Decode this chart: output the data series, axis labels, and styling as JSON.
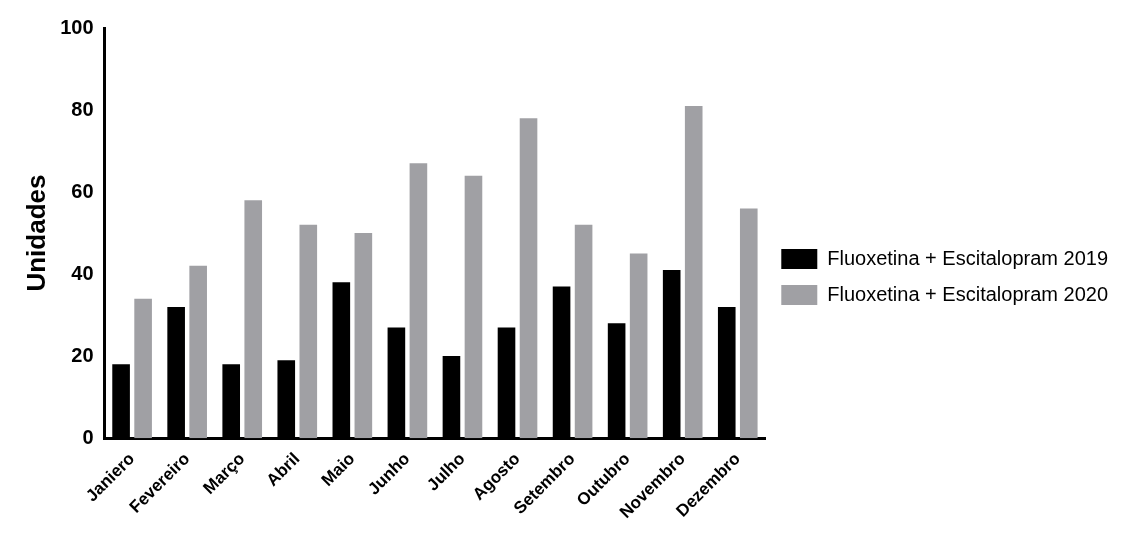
{
  "chart_data": {
    "type": "bar",
    "ylabel": "Unidades",
    "categories": [
      "Janiero",
      "Fevereiro",
      "Março",
      "Abril",
      "Maio",
      "Junho",
      "Julho",
      "Agosto",
      "Setembro",
      "Outubro",
      "Novembro",
      "Dezembro"
    ],
    "series": [
      {
        "name": "Fluoxetina + Escitalopram 2019",
        "color": "#000000",
        "values": [
          18,
          32,
          18,
          19,
          38,
          27,
          20,
          27,
          37,
          28,
          41,
          32
        ]
      },
      {
        "name": "Fluoxetina + Escitalopram 2020",
        "color": "#a0a0a4",
        "values": [
          34,
          42,
          58,
          52,
          50,
          67,
          64,
          78,
          52,
          45,
          81,
          56
        ]
      }
    ],
    "ylim": [
      0,
      100
    ],
    "yticks": [
      0,
      20,
      40,
      60,
      80,
      100
    ],
    "grid": false,
    "legend": "right"
  }
}
